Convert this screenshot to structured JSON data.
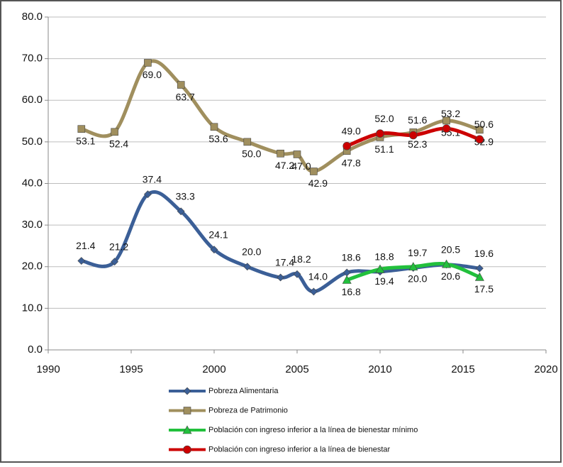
{
  "chart_data": {
    "type": "line",
    "x": [
      1992,
      1994,
      1996,
      1998,
      2000,
      2002,
      2004,
      2005,
      2006,
      2008,
      2010,
      2012,
      2014,
      2016
    ],
    "series": [
      {
        "name": "Pobreza Alimentaria",
        "color": "#3b5f97",
        "marker": "diamond",
        "values": [
          21.4,
          21.2,
          37.4,
          33.3,
          24.1,
          20.0,
          17.4,
          18.2,
          14.0,
          18.6,
          18.8,
          19.7,
          20.5,
          19.6
        ],
        "value_labels": [
          "21.4",
          "21.2",
          "37.4",
          "33.3",
          "24.1",
          "20.0",
          "17.4",
          "18.2",
          "14.0",
          "18.6",
          "18.8",
          "19.7",
          "20.5",
          "19.6"
        ]
      },
      {
        "name": "Pobreza de Patrimonio",
        "color": "#a08f5e",
        "marker": "square",
        "values": [
          53.1,
          52.4,
          69.0,
          63.7,
          53.6,
          50.0,
          47.2,
          47.0,
          42.9,
          47.8,
          51.1,
          52.3,
          55.1,
          52.9
        ],
        "value_labels": [
          "53.1",
          "52.4",
          "69.0",
          "63.7",
          "53.6",
          "50.0",
          "47.2",
          "47.0",
          "42.9",
          "47.8",
          "51.1",
          "52.3",
          "55.1",
          "52.9"
        ]
      },
      {
        "name": "Población con ingreso inferior a la línea de bienestar mínimo",
        "color": "#22c03c",
        "marker": "triangle",
        "values": [
          null,
          null,
          null,
          null,
          null,
          null,
          null,
          null,
          null,
          16.8,
          19.4,
          20.0,
          20.6,
          17.5
        ],
        "value_labels": [
          null,
          null,
          null,
          null,
          null,
          null,
          null,
          null,
          null,
          "16.8",
          "19.4",
          "20.0",
          "20.6",
          "17.5"
        ]
      },
      {
        "name": "Población con ingreso inferior a la línea de bienestar",
        "color": "#cc0000",
        "marker": "circle",
        "values": [
          null,
          null,
          null,
          null,
          null,
          null,
          null,
          null,
          null,
          49.0,
          52.0,
          51.6,
          53.2,
          50.6
        ],
        "value_labels": [
          null,
          null,
          null,
          null,
          null,
          null,
          null,
          null,
          null,
          "49.0",
          "52.0",
          "51.6",
          "53.2",
          "50.6"
        ]
      }
    ],
    "xlim": [
      1990,
      2020
    ],
    "xticks": [
      1990,
      1995,
      2000,
      2005,
      2010,
      2015,
      2020
    ],
    "ylim": [
      0,
      80
    ],
    "yticks": [
      {
        "value": 0,
        "label": "0.0"
      },
      {
        "value": 10,
        "label": "10.0"
      },
      {
        "value": 20,
        "label": "20.0"
      },
      {
        "value": 30,
        "label": "30.0"
      },
      {
        "value": 40,
        "label": "40.0"
      },
      {
        "value": 50,
        "label": "50.0"
      },
      {
        "value": 60,
        "label": "60.0"
      },
      {
        "value": 70,
        "label": "70.0"
      },
      {
        "value": 80,
        "label": "80.0"
      }
    ],
    "grid": true,
    "legend": "bottom"
  }
}
